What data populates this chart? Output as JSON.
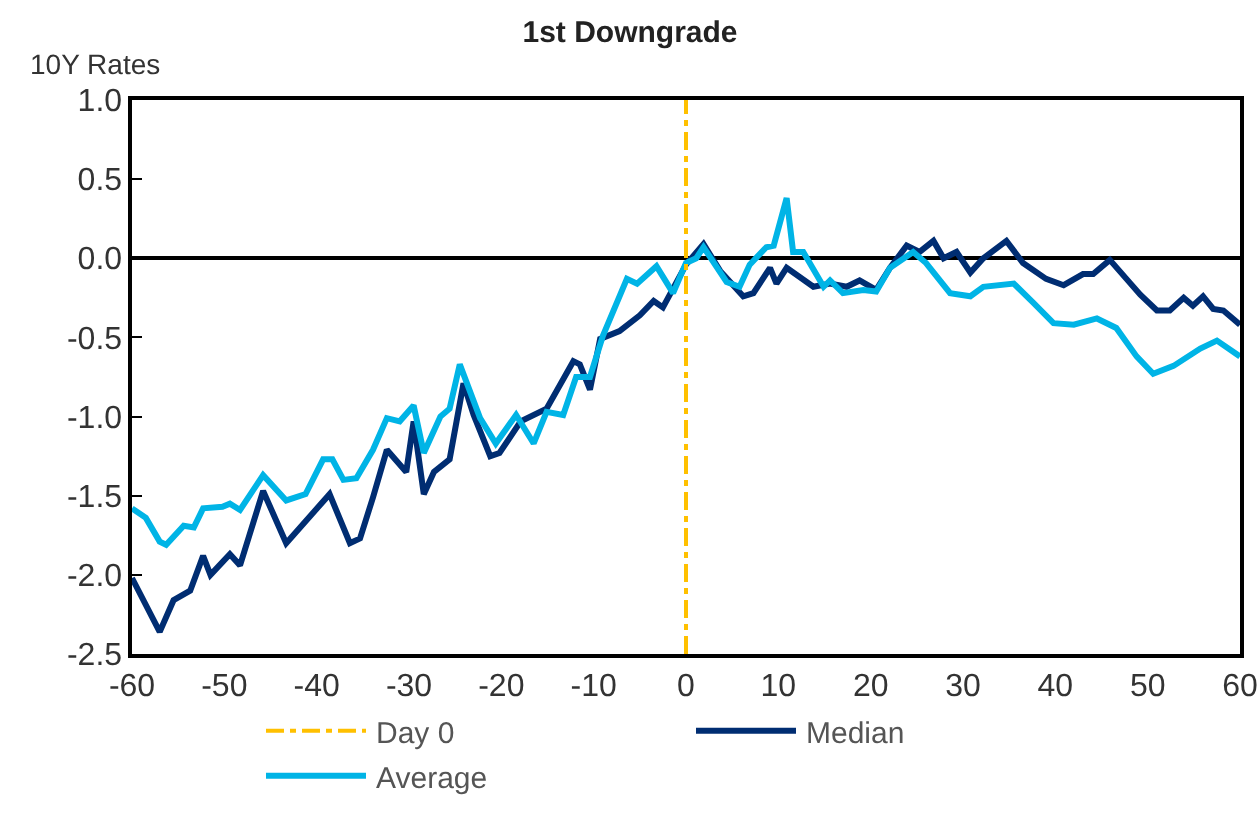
{
  "chart_data": {
    "type": "line",
    "title": "1st Downgrade",
    "ylabel": "10Y Rates",
    "xlim": [
      -60,
      60
    ],
    "xticks": [
      -60,
      -50,
      -40,
      -30,
      -20,
      -10,
      0,
      10,
      20,
      30,
      40,
      50,
      60
    ],
    "ylim": [
      -2.5,
      1.0
    ],
    "yticks": [
      {
        "value": -2.5,
        "label": "-2.5"
      },
      {
        "value": -2,
        "label": "-2.0"
      },
      {
        "value": -1.5,
        "label": "-1.5"
      },
      {
        "value": -1,
        "label": "-1.0"
      },
      {
        "value": -0.5,
        "label": "-0.5"
      },
      {
        "value": 0,
        "label": "0.0"
      },
      {
        "value": 0.5,
        "label": "0.5"
      },
      {
        "value": 1,
        "label": "1.0"
      }
    ],
    "grid": false,
    "legend": "bottom",
    "marker": "none",
    "line_style": "solid",
    "ref_lines": [
      {
        "axis": "x",
        "value": 0,
        "label": "Day 0",
        "color": "#ffc000",
        "line_style": "dashed"
      }
    ],
    "series": [
      {
        "name": "Median",
        "color": "#002d72",
        "x": [
          -60,
          -57,
          -55.5,
          -53.7,
          -52.3,
          -51.5,
          -49.4,
          -48.3,
          -45.8,
          -43.3,
          -38.6,
          -36.4,
          -35.3,
          -33.9,
          -32.4,
          -30.3,
          -29.5,
          -28.4,
          -27.3,
          -25.6,
          -24.1,
          -23,
          -21.2,
          -20.2,
          -17.9,
          -15.1,
          -12.2,
          -11.5,
          -10.4,
          -9.3,
          -7.2,
          -5,
          -3.5,
          -2.5,
          0,
          1.9,
          3.7,
          6.2,
          7.3,
          9.1,
          9.8,
          10.9,
          13.8,
          15.6,
          17.4,
          18.8,
          20.6,
          22.1,
          23.9,
          25.3,
          26.8,
          27.9,
          29.3,
          30.8,
          32.2,
          34.7,
          36.5,
          39,
          40.9,
          43,
          44.1,
          45.9,
          47.7,
          49.2,
          51,
          52.4,
          53.9,
          54.9,
          56,
          57.1,
          58.2,
          60
        ],
        "values": [
          -2.02,
          -2.36,
          -2.16,
          -2.1,
          -1.88,
          -2.0,
          -1.87,
          -1.94,
          -1.47,
          -1.8,
          -1.49,
          -1.8,
          -1.77,
          -1.51,
          -1.21,
          -1.35,
          -1.03,
          -1.49,
          -1.35,
          -1.27,
          -0.79,
          -0.99,
          -1.25,
          -1.23,
          -1.03,
          -0.95,
          -0.65,
          -0.67,
          -0.83,
          -0.51,
          -0.46,
          -0.36,
          -0.27,
          -0.31,
          -0.04,
          0.09,
          -0.08,
          -0.24,
          -0.22,
          -0.06,
          -0.16,
          -0.06,
          -0.18,
          -0.16,
          -0.18,
          -0.14,
          -0.2,
          -0.06,
          0.08,
          0.04,
          0.11,
          0.0,
          0.04,
          -0.09,
          0.0,
          0.11,
          -0.03,
          -0.13,
          -0.17,
          -0.1,
          -0.1,
          -0.01,
          -0.13,
          -0.23,
          -0.33,
          -0.33,
          -0.25,
          -0.3,
          -0.24,
          -0.32,
          -0.33,
          -0.42
        ]
      },
      {
        "name": "Average",
        "color": "#00b4e6",
        "x": [
          -60,
          -58.5,
          -57,
          -56.3,
          -54.4,
          -53.3,
          -52.3,
          -50.2,
          -49.4,
          -48.3,
          -45.8,
          -43.3,
          -41.2,
          -39.3,
          -38.3,
          -37.1,
          -35.7,
          -33.9,
          -32.4,
          -31,
          -29.5,
          -28.4,
          -26.6,
          -25.6,
          -24.5,
          -22.3,
          -20.6,
          -18.4,
          -16.5,
          -15.1,
          -13.3,
          -11.9,
          -10.4,
          -9,
          -6.4,
          -5.3,
          -3.2,
          -1.4,
          0,
          1.1,
          1.9,
          4.4,
          5.8,
          6.9,
          8.7,
          9.5,
          10.9,
          11.6,
          12.7,
          14.9,
          15.6,
          17,
          19.2,
          20.6,
          22.1,
          24.6,
          26,
          28.6,
          30.8,
          32.2,
          35.5,
          37.6,
          39.8,
          42,
          44.5,
          46.6,
          48.8,
          50.6,
          52.8,
          55.7,
          57.5,
          60
        ],
        "values": [
          -1.58,
          -1.64,
          -1.79,
          -1.81,
          -1.69,
          -1.7,
          -1.58,
          -1.57,
          -1.55,
          -1.59,
          -1.37,
          -1.53,
          -1.49,
          -1.27,
          -1.27,
          -1.4,
          -1.39,
          -1.21,
          -1.01,
          -1.03,
          -0.93,
          -1.23,
          -1.0,
          -0.95,
          -0.67,
          -1.01,
          -1.17,
          -0.99,
          -1.17,
          -0.97,
          -0.99,
          -0.75,
          -0.75,
          -0.49,
          -0.13,
          -0.16,
          -0.05,
          -0.22,
          -0.03,
          0.0,
          0.07,
          -0.15,
          -0.18,
          -0.04,
          0.07,
          0.08,
          0.38,
          0.04,
          0.04,
          -0.18,
          -0.14,
          -0.22,
          -0.2,
          -0.21,
          -0.06,
          0.04,
          -0.03,
          -0.22,
          -0.24,
          -0.18,
          -0.16,
          -0.28,
          -0.41,
          -0.42,
          -0.38,
          -0.44,
          -0.62,
          -0.73,
          -0.68,
          -0.57,
          -0.52,
          -0.62
        ]
      }
    ]
  }
}
